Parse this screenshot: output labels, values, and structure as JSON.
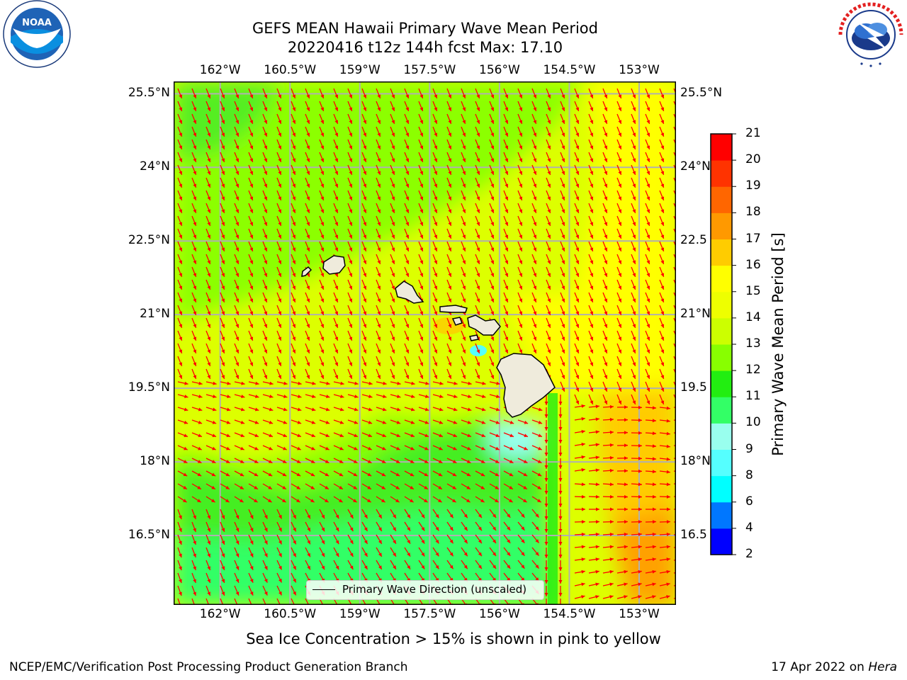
{
  "header": {
    "title_line1": "GEFS MEAN Hawaii Primary Wave Mean Period",
    "title_line2": "20220416 t12z 144h fcst   Max: 17.10"
  },
  "logos": {
    "noaa_text": "NOAA",
    "noaa_ring": "NATIONAL OCEANIC AND ATMOSPHERIC ADMINISTRATION · U.S. DEPARTMENT OF COMMERCE",
    "nws_ring": "NATIONAL WEATHER SERVICE"
  },
  "map": {
    "lon_ticks": [
      "162°W",
      "160.5°W",
      "159°W",
      "157.5°W",
      "156°W",
      "154.5°W",
      "153°W"
    ],
    "lat_ticks_left": [
      "25.5°N",
      "24°N",
      "22.5°N",
      "21°N",
      "19.5°N",
      "18°N",
      "16.5°N"
    ],
    "lat_ticks_right": [
      "25.5°N",
      "24°N",
      "22.5",
      "21°N",
      "19.5",
      "18°N",
      "16.5"
    ],
    "lon_values": [
      -162,
      -160.5,
      -159,
      -157.5,
      -156,
      -154.5,
      -153
    ],
    "lat_values": [
      25.5,
      24,
      22.5,
      21,
      19.5,
      18,
      16.5
    ],
    "legend_label": "Primary Wave Direction (unscaled)",
    "arrow_color": "#ff0000",
    "land_color": "#efebdc",
    "grid_color": "#b0b0b0"
  },
  "colorbar": {
    "title": "Primary Wave Mean Period [s]",
    "levels": [
      "2",
      "4",
      "6",
      "8",
      "9",
      "10",
      "11",
      "12",
      "13",
      "14",
      "15",
      "16",
      "17",
      "18",
      "19",
      "20",
      "21"
    ],
    "colors": [
      "#0000ff",
      "#0077ff",
      "#00ffff",
      "#55ffff",
      "#99ffee",
      "#33ff66",
      "#22ee11",
      "#88ff00",
      "#ccff00",
      "#eeff00",
      "#ffff00",
      "#ffcc00",
      "#ff9900",
      "#ff6600",
      "#ff3300",
      "#ff0000"
    ]
  },
  "caption": "Sea Ice Concentration > 15% is shown in pink to yellow",
  "footer": {
    "left": "NCEP/EMC/Verification Post Processing Product Generation Branch",
    "right_prefix": "17 Apr 2022 on ",
    "right_host": "Hera"
  }
}
